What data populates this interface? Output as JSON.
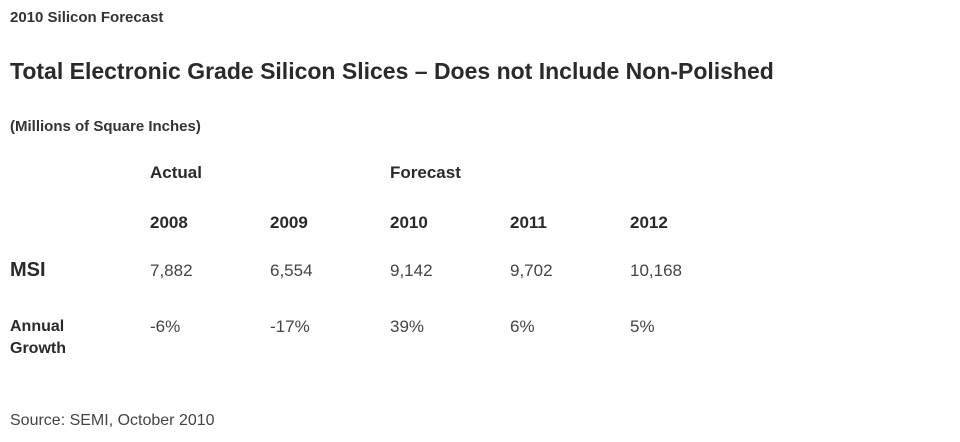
{
  "kicker": "2010 Silicon Forecast",
  "chart_data": {
    "type": "table",
    "title": "Total Electronic Grade Silicon Slices – Does not Include Non-Polished",
    "unit": "(Millions of Square Inches)",
    "column_groups": [
      {
        "label": "Actual",
        "years": [
          "2008",
          "2009"
        ]
      },
      {
        "label": "Forecast",
        "years": [
          "2010",
          "2011",
          "2012"
        ]
      }
    ],
    "categories": [
      "2008",
      "2009",
      "2010",
      "2011",
      "2012"
    ],
    "rows": [
      {
        "label": "MSI",
        "values": [
          "7,882",
          "6,554",
          "9,142",
          "9,702",
          "10,168"
        ]
      },
      {
        "label": "Annual Growth",
        "values": [
          "-6%",
          "-17%",
          "39%",
          "6%",
          "5%"
        ]
      }
    ],
    "series": [
      {
        "name": "MSI",
        "values": [
          7882,
          6554,
          9142,
          9702,
          10168
        ]
      },
      {
        "name": "Annual Growth",
        "values": [
          -6,
          -17,
          39,
          6,
          5
        ]
      }
    ],
    "source": "Source: SEMI, October 2010"
  }
}
